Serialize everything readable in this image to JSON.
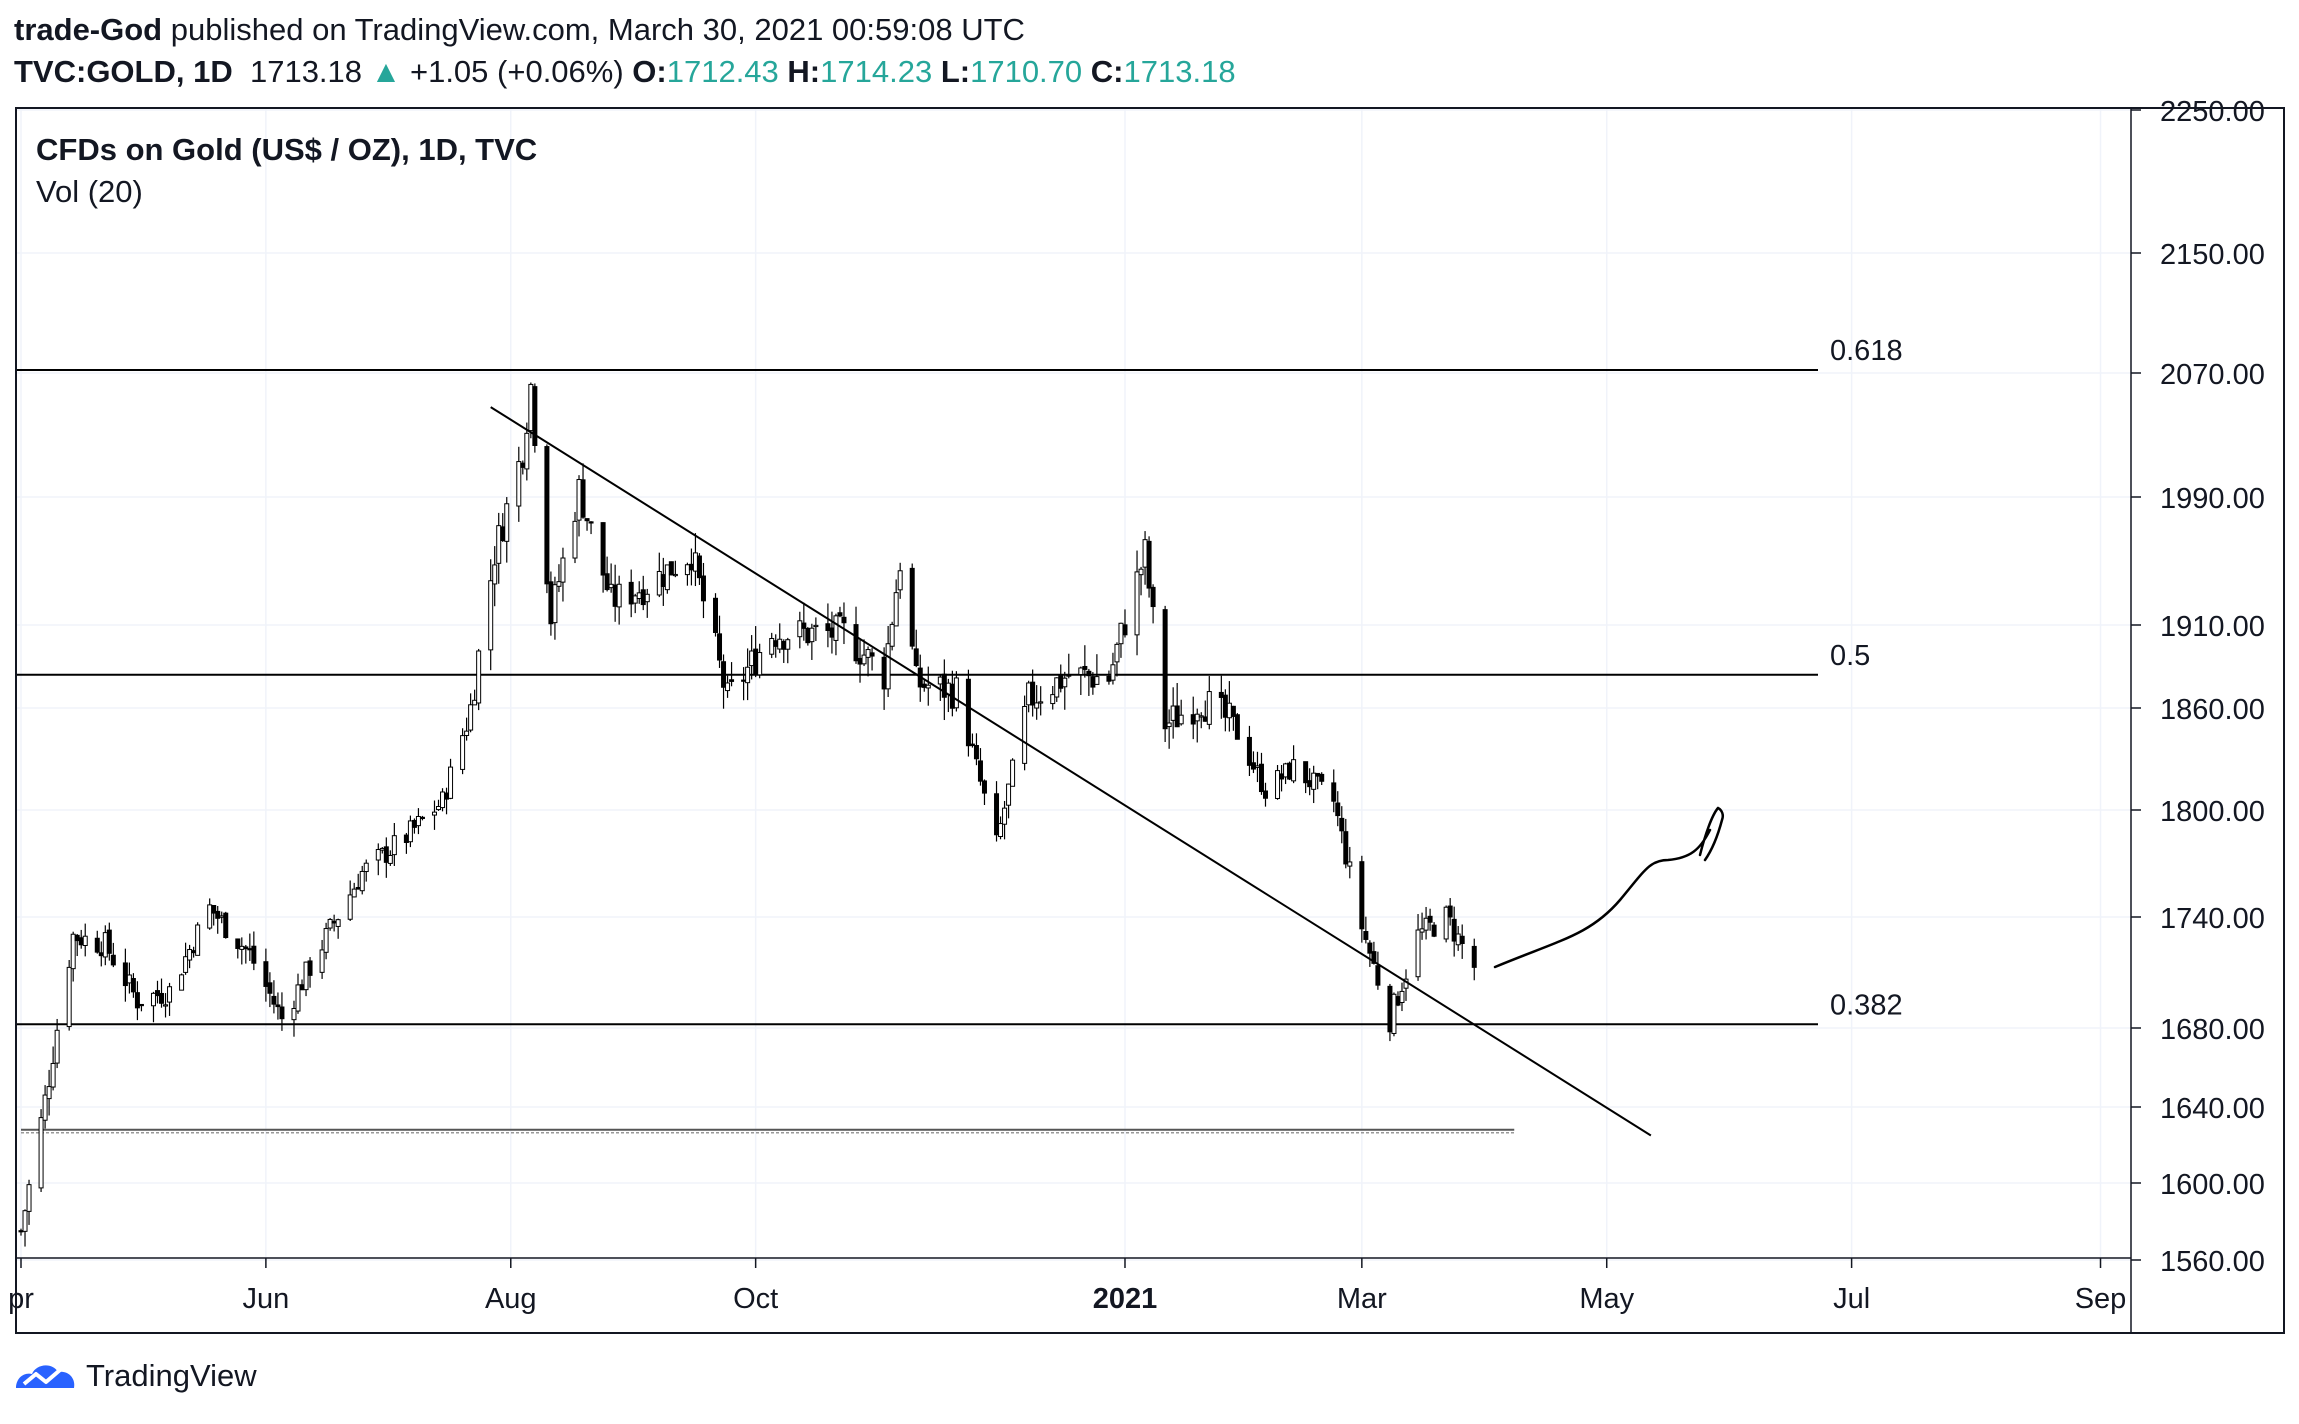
{
  "header": {
    "author": "trade-God",
    "published_text": "published on TradingView.com, March 30, 2021 00:59:08 UTC",
    "symbol": "TVC:GOLD, 1D",
    "last": "1713.18",
    "change": "+1.05 (+0.06%)",
    "o_label": "O:",
    "o_value": "1712.43",
    "h_label": "H:",
    "h_value": "1714.23",
    "l_label": "L:",
    "l_value": "1710.70",
    "c_label": "C:",
    "c_value": "1713.18"
  },
  "legend": {
    "title": "CFDs on Gold (US$ / OZ), 1D, TVC",
    "indicator": "Vol (20)"
  },
  "footer": {
    "brand": "TradingView"
  },
  "colors": {
    "up": "#26a69a",
    "text": "#131722",
    "grid": "#f0f3fa",
    "border": "#131722",
    "line": "#000000"
  },
  "chart_data": {
    "type": "candlestick",
    "title": "CFDs on Gold (US$ / OZ), 1D, TVC",
    "y_ticks": [
      "2250.00",
      "2150.00",
      "2070.00",
      "1990.00",
      "1910.00",
      "1860.00",
      "1800.00",
      "1740.00",
      "1680.00",
      "1640.00",
      "1600.00",
      "1560.00"
    ],
    "x_ticks": [
      "pr",
      "Jun",
      "Aug",
      "Oct",
      "2021",
      "Mar",
      "May",
      "Jul",
      "Sep"
    ],
    "x_tick_dates": [
      "2020-04-01",
      "2020-06-01",
      "2020-08-01",
      "2020-10-01",
      "2021-01-01",
      "2021-03-01",
      "2021-05-01",
      "2021-07-01",
      "2021-09-01"
    ],
    "fib_levels": [
      {
        "label": "0.618",
        "price": 2072
      },
      {
        "label": "0.5",
        "price": 1880
      },
      {
        "label": "0.382",
        "price": 1682
      }
    ],
    "support_line": {
      "price": 1628,
      "from": "2020-04-01",
      "to": "2021-03-29"
    },
    "trendline": {
      "from": {
        "date": "2020-07-27",
        "price": 2048
      },
      "to": {
        "date": "2021-05-12",
        "price": 1625
      }
    },
    "projection_arrow": "hand-drawn upward curve from ~1715 (early Apr 2021) toward ~1800 (mid May 2021)",
    "anchors": [
      [
        "2020-04-01",
        1575
      ],
      [
        "2020-04-08",
        1655
      ],
      [
        "2020-04-14",
        1730
      ],
      [
        "2020-04-22",
        1725
      ],
      [
        "2020-04-30",
        1695
      ],
      [
        "2020-05-08",
        1700
      ],
      [
        "2020-05-18",
        1745
      ],
      [
        "2020-05-28",
        1720
      ],
      [
        "2020-06-05",
        1685
      ],
      [
        "2020-06-15",
        1725
      ],
      [
        "2020-06-25",
        1765
      ],
      [
        "2020-07-06",
        1785
      ],
      [
        "2020-07-15",
        1805
      ],
      [
        "2020-07-22",
        1860
      ],
      [
        "2020-07-28",
        1955
      ],
      [
        "2020-08-04",
        2020
      ],
      [
        "2020-08-06",
        2062
      ],
      [
        "2020-08-11",
        1915
      ],
      [
        "2020-08-18",
        1995
      ],
      [
        "2020-08-26",
        1925
      ],
      [
        "2020-09-04",
        1935
      ],
      [
        "2020-09-15",
        1955
      ],
      [
        "2020-09-24",
        1865
      ],
      [
        "2020-10-05",
        1905
      ],
      [
        "2020-10-15",
        1905
      ],
      [
        "2020-10-23",
        1905
      ],
      [
        "2020-11-02",
        1880
      ],
      [
        "2020-11-06",
        1950
      ],
      [
        "2020-11-10",
        1875
      ],
      [
        "2020-11-20",
        1870
      ],
      [
        "2020-11-30",
        1780
      ],
      [
        "2020-12-08",
        1865
      ],
      [
        "2020-12-18",
        1880
      ],
      [
        "2020-12-28",
        1878
      ],
      [
        "2021-01-06",
        1955
      ],
      [
        "2021-01-11",
        1850
      ],
      [
        "2021-01-20",
        1865
      ],
      [
        "2021-01-28",
        1850
      ],
      [
        "2021-02-05",
        1812
      ],
      [
        "2021-02-12",
        1825
      ],
      [
        "2021-02-22",
        1805
      ],
      [
        "2021-03-01",
        1735
      ],
      [
        "2021-03-08",
        1685
      ],
      [
        "2021-03-15",
        1730
      ],
      [
        "2021-03-22",
        1740
      ],
      [
        "2021-03-29",
        1713
      ]
    ]
  }
}
